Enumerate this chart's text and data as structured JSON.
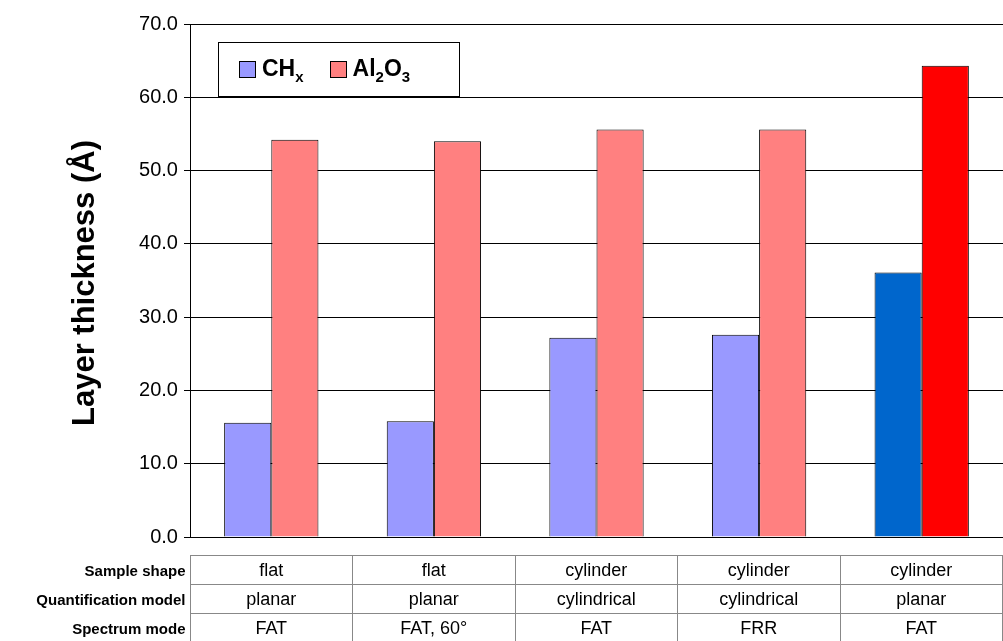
{
  "chart_data": {
    "type": "bar",
    "ylabel": "Layer thickness (Å)",
    "categories": [
      "flat\nplanar\nFAT",
      "flat\nplanar\nFAT, 60°",
      "cylinder\ncylindrical\nFAT",
      "cylinder\ncylindrical\nFRR",
      "cylinder\nplanar\nFAT"
    ],
    "annotations": [
      "Sample shape",
      "Quantification model",
      "Spectrum mode"
    ],
    "series": [
      {
        "name": "CH$_{x}$",
        "color": "#9999ff",
        "colors": [
          "#9999ff",
          "#9999ff",
          "#9999ff",
          "#9999ff",
          "#0066cc"
        ],
        "values": [
          15.6,
          15.8,
          27.2,
          27.6,
          36.1
        ]
      },
      {
        "name": "Al$_{2}$O$_{3}$",
        "color": "#ff8080",
        "colors": [
          "#ff8080",
          "#ff8080",
          "#ff8080",
          "#ff8080",
          "#ff0000"
        ],
        "values": [
          54.2,
          54.0,
          55.6,
          55.6,
          64.3
        ]
      }
    ],
    "ylim": [
      0,
      70
    ],
    "yticks": [
      {
        "value": 0,
        "label": "0.0"
      },
      {
        "value": 10,
        "label": "10.0"
      },
      {
        "value": 20,
        "label": "20.0"
      },
      {
        "value": 30,
        "label": "30.0"
      },
      {
        "value": 40,
        "label": "40.0"
      },
      {
        "value": 50,
        "label": "50.0"
      },
      {
        "value": 60,
        "label": "60.0"
      },
      {
        "value": 70,
        "label": "70.0"
      }
    ],
    "grid": "y",
    "legend": "top left"
  }
}
